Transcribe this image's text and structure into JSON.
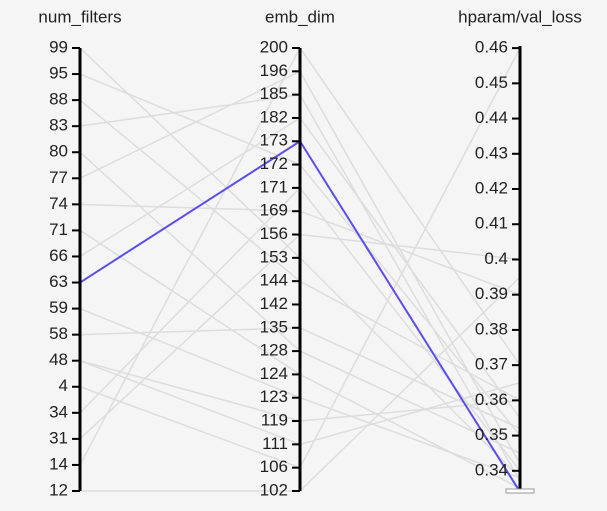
{
  "chart_data": {
    "type": "parallel",
    "dimensions": [
      {
        "name": "num_filters",
        "categories": [
          99,
          95,
          88,
          83,
          80,
          77,
          74,
          71,
          66,
          63,
          59,
          58,
          48,
          4,
          34,
          31,
          14,
          12
        ]
      },
      {
        "name": "emb_dim",
        "categories": [
          200,
          196,
          185,
          182,
          173,
          172,
          171,
          169,
          156,
          153,
          144,
          142,
          135,
          128,
          124,
          123,
          119,
          111,
          106,
          102
        ]
      },
      {
        "name": "hparam/val_loss",
        "ylim": [
          0.3337,
          0.4606
        ],
        "yticks": [
          0.34,
          0.35,
          0.36,
          0.37,
          0.38,
          0.39,
          0.4,
          0.41,
          0.42,
          0.43,
          0.44,
          0.45,
          0.46
        ]
      }
    ],
    "lines": [
      {
        "color": "#dddddd",
        "values": [
          99,
          153,
          0.338
        ]
      },
      {
        "color": "#dddddd",
        "values": [
          95,
          172,
          0.35
        ]
      },
      {
        "color": "#dddddd",
        "values": [
          88,
          144,
          0.36
        ]
      },
      {
        "color": "#dddddd",
        "values": [
          83,
          185,
          0.337
        ]
      },
      {
        "color": "#dddddd",
        "values": [
          80,
          128,
          0.345
        ]
      },
      {
        "color": "#dddddd",
        "values": [
          77,
          196,
          0.342
        ]
      },
      {
        "color": "#dddddd",
        "values": [
          74,
          169,
          0.39
        ]
      },
      {
        "color": "#dddddd",
        "values": [
          71,
          124,
          0.335
        ]
      },
      {
        "color": "#dddddd",
        "values": [
          66,
          182,
          0.355
        ]
      },
      {
        "color": "#dddddd",
        "values": [
          59,
          123,
          0.338
        ]
      },
      {
        "color": "#dddddd",
        "values": [
          58,
          135,
          0.352
        ]
      },
      {
        "color": "#dddddd",
        "values": [
          48,
          119,
          0.36
        ]
      },
      {
        "color": "#dddddd",
        "values": [
          48,
          111,
          0.365
        ]
      },
      {
        "color": "#dddddd",
        "values": [
          4,
          106,
          0.46
        ]
      },
      {
        "color": "#dddddd",
        "values": [
          34,
          171,
          0.34
        ]
      },
      {
        "color": "#dddddd",
        "values": [
          31,
          156,
          0.4
        ]
      },
      {
        "color": "#dddddd",
        "values": [
          14,
          200,
          0.37
        ]
      },
      {
        "color": "#dddddd",
        "values": [
          12,
          102,
          0.395
        ]
      },
      {
        "color": "#5b4ee8",
        "values": [
          63,
          173,
          0.334
        ]
      }
    ]
  }
}
